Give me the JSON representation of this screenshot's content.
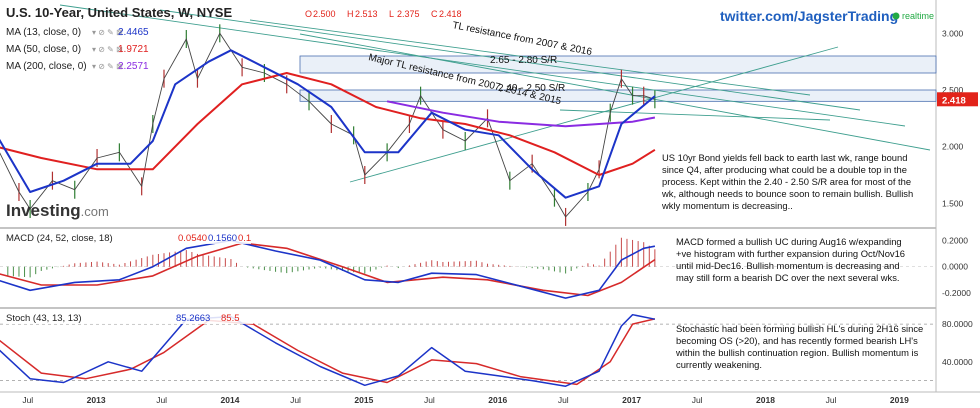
{
  "header": {
    "symbol_title": "U.S. 10-Year, United States, W, NYSE",
    "ohlc": [
      {
        "k": "O",
        "v": "2.500"
      },
      {
        "k": "H",
        "v": "2.513"
      },
      {
        "k": "L",
        "v": "2.375"
      },
      {
        "k": "C",
        "v": "2.418"
      }
    ],
    "twitter": "twitter.com/JagsterTrading",
    "realtime_label": "realtime"
  },
  "indicators": [
    {
      "label": "MA (13, close, 0)",
      "value": "2.4465",
      "color": "#1c34c8"
    },
    {
      "label": "MA (50, close, 0)",
      "value": "1.9721",
      "color": "#e02020"
    },
    {
      "label": "MA (200, close, 0)",
      "value": "2.2571",
      "color": "#8a2be2"
    }
  ],
  "logo": {
    "text": "Investing",
    "suffix": ".com"
  },
  "price_badge": "2.418",
  "annotations": {
    "tl_2007_2016": "TL resistance from 2007 & 2016",
    "major_tl": "Major TL resistance from 2007, 2014 & 2015",
    "sr_265_280": "2.65 - 2.80 S/R",
    "sr_240_250": "2.40 - 2.50 S/R",
    "price_comment": "US 10yr Bond yields fell back to earth last wk, range bound since Q4, after producing  what could be a double top in the process. Kept within the 2.40 - 2.50 S/R area for most of the wk, although needs to bounce soon to remain bullish. Bullish wkly momentum is decreasing..",
    "macd_comment": "MACD formed a bullish UC during  Aug16 w/expanding +ve histogram with further expansion during  Oct/Nov16 until mid-Dec16. Bullish momentum is decreasing and may still form a bearish DC over  the next several wks.",
    "stoch_comment": "Stochastic had been  forming bullish HL's during  2H16 since becoming OS (>20), and  has recently formed bearish LH's within the bullish continuation  region. Bullish momentum is currently weakening."
  },
  "macd_legend": {
    "label": "MACD (24, 52, close, 18)",
    "values": [
      "0.0540",
      "0.1560",
      "0.1"
    ]
  },
  "stoch_legend": {
    "label": "Stoch (43, 13, 13)",
    "values": [
      "85.2663",
      "85.5"
    ]
  },
  "x_axis_labels": [
    "Jul",
    "2013",
    "Jul",
    "2014",
    "Jul",
    "2015",
    "Jul",
    "2016",
    "Jul",
    "2017",
    "Jul",
    "2018",
    "Jul",
    "2019"
  ],
  "chart_data": [
    {
      "type": "line",
      "name": "price",
      "ylim": [
        1.3,
        3.1
      ],
      "yticks": [
        1.5,
        2.0,
        2.5,
        3.0
      ],
      "ytick_labels": [
        "1.500",
        "2.000",
        "2.500",
        "3.000"
      ],
      "x_range": [
        "2012-04",
        "2019-04"
      ],
      "grid": false,
      "close": [
        {
          "x": "2012-04",
          "y": 2.0
        },
        {
          "x": "2012-06",
          "y": 1.6
        },
        {
          "x": "2012-07",
          "y": 1.45
        },
        {
          "x": "2012-09",
          "y": 1.7
        },
        {
          "x": "2012-11",
          "y": 1.62
        },
        {
          "x": "2013-01",
          "y": 1.9
        },
        {
          "x": "2013-03",
          "y": 1.95
        },
        {
          "x": "2013-05",
          "y": 1.65
        },
        {
          "x": "2013-06",
          "y": 2.2
        },
        {
          "x": "2013-07",
          "y": 2.6
        },
        {
          "x": "2013-09",
          "y": 2.95
        },
        {
          "x": "2013-10",
          "y": 2.6
        },
        {
          "x": "2013-12",
          "y": 3.0
        },
        {
          "x": "2014-02",
          "y": 2.7
        },
        {
          "x": "2014-04",
          "y": 2.65
        },
        {
          "x": "2014-06",
          "y": 2.55
        },
        {
          "x": "2014-08",
          "y": 2.4
        },
        {
          "x": "2014-10",
          "y": 2.2
        },
        {
          "x": "2014-12",
          "y": 2.1
        },
        {
          "x": "2015-01",
          "y": 1.75
        },
        {
          "x": "2015-03",
          "y": 1.95
        },
        {
          "x": "2015-05",
          "y": 2.2
        },
        {
          "x": "2015-06",
          "y": 2.45
        },
        {
          "x": "2015-08",
          "y": 2.15
        },
        {
          "x": "2015-10",
          "y": 2.05
        },
        {
          "x": "2015-12",
          "y": 2.25
        },
        {
          "x": "2016-02",
          "y": 1.7
        },
        {
          "x": "2016-04",
          "y": 1.85
        },
        {
          "x": "2016-06",
          "y": 1.55
        },
        {
          "x": "2016-07",
          "y": 1.38
        },
        {
          "x": "2016-09",
          "y": 1.6
        },
        {
          "x": "2016-10",
          "y": 1.8
        },
        {
          "x": "2016-11",
          "y": 2.3
        },
        {
          "x": "2016-12",
          "y": 2.6
        },
        {
          "x": "2017-01",
          "y": 2.45
        },
        {
          "x": "2017-02",
          "y": 2.45
        },
        {
          "x": "2017-03",
          "y": 2.418
        }
      ],
      "ma13": [
        {
          "x": "2012-04",
          "y": 2.1
        },
        {
          "x": "2012-07",
          "y": 1.6
        },
        {
          "x": "2012-10",
          "y": 1.7
        },
        {
          "x": "2013-01",
          "y": 1.85
        },
        {
          "x": "2013-04",
          "y": 1.85
        },
        {
          "x": "2013-06",
          "y": 2.05
        },
        {
          "x": "2013-08",
          "y": 2.55
        },
        {
          "x": "2013-11",
          "y": 2.75
        },
        {
          "x": "2014-01",
          "y": 2.85
        },
        {
          "x": "2014-04",
          "y": 2.7
        },
        {
          "x": "2014-07",
          "y": 2.55
        },
        {
          "x": "2014-10",
          "y": 2.35
        },
        {
          "x": "2015-01",
          "y": 1.95
        },
        {
          "x": "2015-04",
          "y": 1.95
        },
        {
          "x": "2015-07",
          "y": 2.3
        },
        {
          "x": "2015-10",
          "y": 2.15
        },
        {
          "x": "2016-01",
          "y": 2.1
        },
        {
          "x": "2016-04",
          "y": 1.8
        },
        {
          "x": "2016-07",
          "y": 1.55
        },
        {
          "x": "2016-10",
          "y": 1.65
        },
        {
          "x": "2016-12",
          "y": 2.2
        },
        {
          "x": "2017-03",
          "y": 2.4465
        }
      ],
      "ma50": [
        {
          "x": "2012-04",
          "y": 2.0
        },
        {
          "x": "2012-08",
          "y": 1.9
        },
        {
          "x": "2013-01",
          "y": 1.8
        },
        {
          "x": "2013-06",
          "y": 1.8
        },
        {
          "x": "2013-10",
          "y": 2.2
        },
        {
          "x": "2014-02",
          "y": 2.55
        },
        {
          "x": "2014-06",
          "y": 2.65
        },
        {
          "x": "2014-10",
          "y": 2.55
        },
        {
          "x": "2015-02",
          "y": 2.35
        },
        {
          "x": "2015-06",
          "y": 2.25
        },
        {
          "x": "2015-10",
          "y": 2.2
        },
        {
          "x": "2016-02",
          "y": 2.1
        },
        {
          "x": "2016-06",
          "y": 1.95
        },
        {
          "x": "2016-10",
          "y": 1.75
        },
        {
          "x": "2017-01",
          "y": 1.85
        },
        {
          "x": "2017-03",
          "y": 1.9721
        }
      ],
      "ma200": [
        {
          "x": "2015-03",
          "y": 2.4
        },
        {
          "x": "2015-08",
          "y": 2.3
        },
        {
          "x": "2016-01",
          "y": 2.22
        },
        {
          "x": "2016-07",
          "y": 2.18
        },
        {
          "x": "2017-01",
          "y": 2.22
        },
        {
          "x": "2017-03",
          "y": 2.2571
        }
      ],
      "sr_zones": [
        [
          2.65,
          2.8
        ],
        [
          2.4,
          2.5
        ]
      ],
      "price_label": "2.418"
    },
    {
      "type": "line",
      "name": "macd",
      "ylim": [
        -0.3,
        0.28
      ],
      "yticks": [
        0.2,
        0.0,
        -0.2
      ],
      "ytick_labels": [
        "0.2000",
        "0.0000",
        "-0.2000"
      ],
      "macd": [
        {
          "x": "2012-04",
          "y": -0.1
        },
        {
          "x": "2012-07",
          "y": -0.18
        },
        {
          "x": "2012-11",
          "y": -0.12
        },
        {
          "x": "2013-03",
          "y": -0.1
        },
        {
          "x": "2013-06",
          "y": 0.0
        },
        {
          "x": "2013-09",
          "y": 0.14
        },
        {
          "x": "2014-01",
          "y": 0.2
        },
        {
          "x": "2014-05",
          "y": 0.12
        },
        {
          "x": "2014-09",
          "y": 0.05
        },
        {
          "x": "2015-01",
          "y": -0.1
        },
        {
          "x": "2015-04",
          "y": -0.12
        },
        {
          "x": "2015-07",
          "y": -0.05
        },
        {
          "x": "2015-11",
          "y": -0.06
        },
        {
          "x": "2016-03",
          "y": -0.15
        },
        {
          "x": "2016-07",
          "y": -0.24
        },
        {
          "x": "2016-10",
          "y": -0.18
        },
        {
          "x": "2016-12",
          "y": 0.05
        },
        {
          "x": "2017-02",
          "y": 0.14
        },
        {
          "x": "2017-03",
          "y": 0.156
        }
      ],
      "signal": [
        {
          "x": "2012-04",
          "y": -0.05
        },
        {
          "x": "2012-08",
          "y": -0.14
        },
        {
          "x": "2013-01",
          "y": -0.14
        },
        {
          "x": "2013-06",
          "y": -0.07
        },
        {
          "x": "2013-10",
          "y": 0.08
        },
        {
          "x": "2014-02",
          "y": 0.18
        },
        {
          "x": "2014-06",
          "y": 0.14
        },
        {
          "x": "2014-11",
          "y": 0.0
        },
        {
          "x": "2015-03",
          "y": -0.12
        },
        {
          "x": "2015-08",
          "y": -0.08
        },
        {
          "x": "2015-12",
          "y": -0.1
        },
        {
          "x": "2016-05",
          "y": -0.18
        },
        {
          "x": "2016-09",
          "y": -0.22
        },
        {
          "x": "2016-12",
          "y": -0.12
        },
        {
          "x": "2017-03",
          "y": 0.054
        }
      ]
    },
    {
      "type": "line",
      "name": "stoch",
      "ylim": [
        10,
        95
      ],
      "yticks": [
        80,
        40
      ],
      "ytick_labels": [
        "80.0000",
        "40.0000"
      ],
      "overbought": 80,
      "oversold": 20,
      "k": [
        {
          "x": "2012-04",
          "y": 55
        },
        {
          "x": "2012-07",
          "y": 22
        },
        {
          "x": "2012-10",
          "y": 18
        },
        {
          "x": "2013-02",
          "y": 40
        },
        {
          "x": "2013-05",
          "y": 30
        },
        {
          "x": "2013-09",
          "y": 85
        },
        {
          "x": "2014-01",
          "y": 88
        },
        {
          "x": "2014-05",
          "y": 60
        },
        {
          "x": "2014-09",
          "y": 35
        },
        {
          "x": "2015-01",
          "y": 15
        },
        {
          "x": "2015-04",
          "y": 25
        },
        {
          "x": "2015-07",
          "y": 55
        },
        {
          "x": "2015-10",
          "y": 30
        },
        {
          "x": "2016-01",
          "y": 25
        },
        {
          "x": "2016-04",
          "y": 20
        },
        {
          "x": "2016-07",
          "y": 14
        },
        {
          "x": "2016-10",
          "y": 30
        },
        {
          "x": "2016-12",
          "y": 78
        },
        {
          "x": "2017-01",
          "y": 90
        },
        {
          "x": "2017-03",
          "y": 85.27
        }
      ],
      "d": [
        {
          "x": "2012-04",
          "y": 65
        },
        {
          "x": "2012-08",
          "y": 28
        },
        {
          "x": "2012-12",
          "y": 22
        },
        {
          "x": "2013-04",
          "y": 32
        },
        {
          "x": "2013-07",
          "y": 50
        },
        {
          "x": "2013-11",
          "y": 84
        },
        {
          "x": "2014-03",
          "y": 80
        },
        {
          "x": "2014-07",
          "y": 52
        },
        {
          "x": "2014-11",
          "y": 28
        },
        {
          "x": "2015-03",
          "y": 18
        },
        {
          "x": "2015-07",
          "y": 42
        },
        {
          "x": "2015-11",
          "y": 38
        },
        {
          "x": "2016-03",
          "y": 24
        },
        {
          "x": "2016-08",
          "y": 16
        },
        {
          "x": "2016-11",
          "y": 40
        },
        {
          "x": "2017-01",
          "y": 80
        },
        {
          "x": "2017-03",
          "y": 85.5
        }
      ]
    }
  ]
}
